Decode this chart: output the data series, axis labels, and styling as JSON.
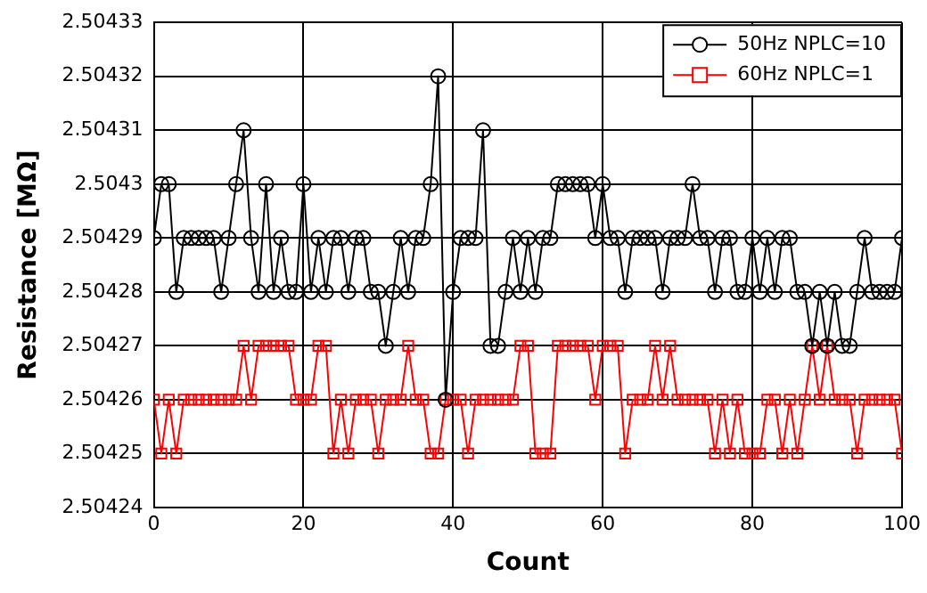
{
  "chart_data": {
    "type": "line",
    "xlabel": "Count",
    "ylabel": "Resistance [MΩ]",
    "x": [
      0,
      1,
      2,
      3,
      4,
      5,
      6,
      7,
      8,
      9,
      10,
      11,
      12,
      13,
      14,
      15,
      16,
      17,
      18,
      19,
      20,
      21,
      22,
      23,
      24,
      25,
      26,
      27,
      28,
      29,
      30,
      31,
      32,
      33,
      34,
      35,
      36,
      37,
      38,
      39,
      40,
      41,
      42,
      43,
      44,
      45,
      46,
      47,
      48,
      49,
      50,
      51,
      52,
      53,
      54,
      55,
      56,
      57,
      58,
      59,
      60,
      61,
      62,
      63,
      64,
      65,
      66,
      67,
      68,
      69,
      70,
      71,
      72,
      73,
      74,
      75,
      76,
      77,
      78,
      79,
      80,
      81,
      82,
      83,
      84,
      85,
      86,
      87,
      88,
      89,
      90,
      91,
      92,
      93,
      94,
      95,
      96,
      97,
      98,
      99,
      100
    ],
    "series": [
      {
        "name": "50Hz NPLC=10",
        "color": "#000000",
        "marker": "circle",
        "values": [
          2.50429,
          2.5043,
          2.5043,
          2.50428,
          2.50429,
          2.50429,
          2.50429,
          2.50429,
          2.50429,
          2.50428,
          2.50429,
          2.5043,
          2.50431,
          2.50429,
          2.50428,
          2.5043,
          2.50428,
          2.50429,
          2.50428,
          2.50428,
          2.5043,
          2.50428,
          2.50429,
          2.50428,
          2.50429,
          2.50429,
          2.50428,
          2.50429,
          2.50429,
          2.50428,
          2.50428,
          2.50427,
          2.50428,
          2.50429,
          2.50428,
          2.50429,
          2.50429,
          2.5043,
          2.50432,
          2.50426,
          2.50428,
          2.50429,
          2.50429,
          2.50429,
          2.50431,
          2.50427,
          2.50427,
          2.50428,
          2.50429,
          2.50428,
          2.50429,
          2.50428,
          2.50429,
          2.50429,
          2.5043,
          2.5043,
          2.5043,
          2.5043,
          2.5043,
          2.50429,
          2.5043,
          2.50429,
          2.50429,
          2.50428,
          2.50429,
          2.50429,
          2.50429,
          2.50429,
          2.50428,
          2.50429,
          2.50429,
          2.50429,
          2.5043,
          2.50429,
          2.50429,
          2.50428,
          2.50429,
          2.50429,
          2.50428,
          2.50428,
          2.50429,
          2.50428,
          2.50429,
          2.50428,
          2.50429,
          2.50429,
          2.50428,
          2.50428,
          2.50427,
          2.50428,
          2.50427,
          2.50428,
          2.50427,
          2.50427,
          2.50428,
          2.50429,
          2.50428,
          2.50428,
          2.50428,
          2.50428,
          2.50429
        ]
      },
      {
        "name": "60Hz NPLC=1",
        "color": "#ff0000",
        "marker": "square",
        "values": [
          2.50426,
          2.50425,
          2.50426,
          2.50425,
          2.50426,
          2.50426,
          2.50426,
          2.50426,
          2.50426,
          2.50426,
          2.50426,
          2.50426,
          2.50427,
          2.50426,
          2.50427,
          2.50427,
          2.50427,
          2.50427,
          2.50427,
          2.50426,
          2.50426,
          2.50426,
          2.50427,
          2.50427,
          2.50425,
          2.50426,
          2.50425,
          2.50426,
          2.50426,
          2.50426,
          2.50425,
          2.50426,
          2.50426,
          2.50426,
          2.50427,
          2.50426,
          2.50426,
          2.50425,
          2.50425,
          2.50426,
          2.50426,
          2.50426,
          2.50425,
          2.50426,
          2.50426,
          2.50426,
          2.50426,
          2.50426,
          2.50426,
          2.50427,
          2.50427,
          2.50425,
          2.50425,
          2.50425,
          2.50427,
          2.50427,
          2.50427,
          2.50427,
          2.50427,
          2.50426,
          2.50427,
          2.50427,
          2.50427,
          2.50425,
          2.50426,
          2.50426,
          2.50426,
          2.50427,
          2.50426,
          2.50427,
          2.50426,
          2.50426,
          2.50426,
          2.50426,
          2.50426,
          2.50425,
          2.50426,
          2.50425,
          2.50426,
          2.50425,
          2.50425,
          2.50425,
          2.50426,
          2.50426,
          2.50425,
          2.50426,
          2.50425,
          2.50426,
          2.50427,
          2.50426,
          2.50427,
          2.50426,
          2.50426,
          2.50426,
          2.50425,
          2.50426,
          2.50426,
          2.50426,
          2.50426,
          2.50426,
          2.50425
        ]
      }
    ],
    "xlim": [
      0,
      100
    ],
    "xticks": [
      0,
      20,
      40,
      60,
      80,
      100
    ],
    "ylim": [
      2.50424,
      2.50433
    ],
    "yticks": [
      2.50424,
      2.50425,
      2.50426,
      2.50427,
      2.50428,
      2.50429,
      2.5043,
      2.50431,
      2.50432,
      2.50433
    ],
    "grid": true,
    "legend": "top right",
    "line_style": "solid"
  }
}
